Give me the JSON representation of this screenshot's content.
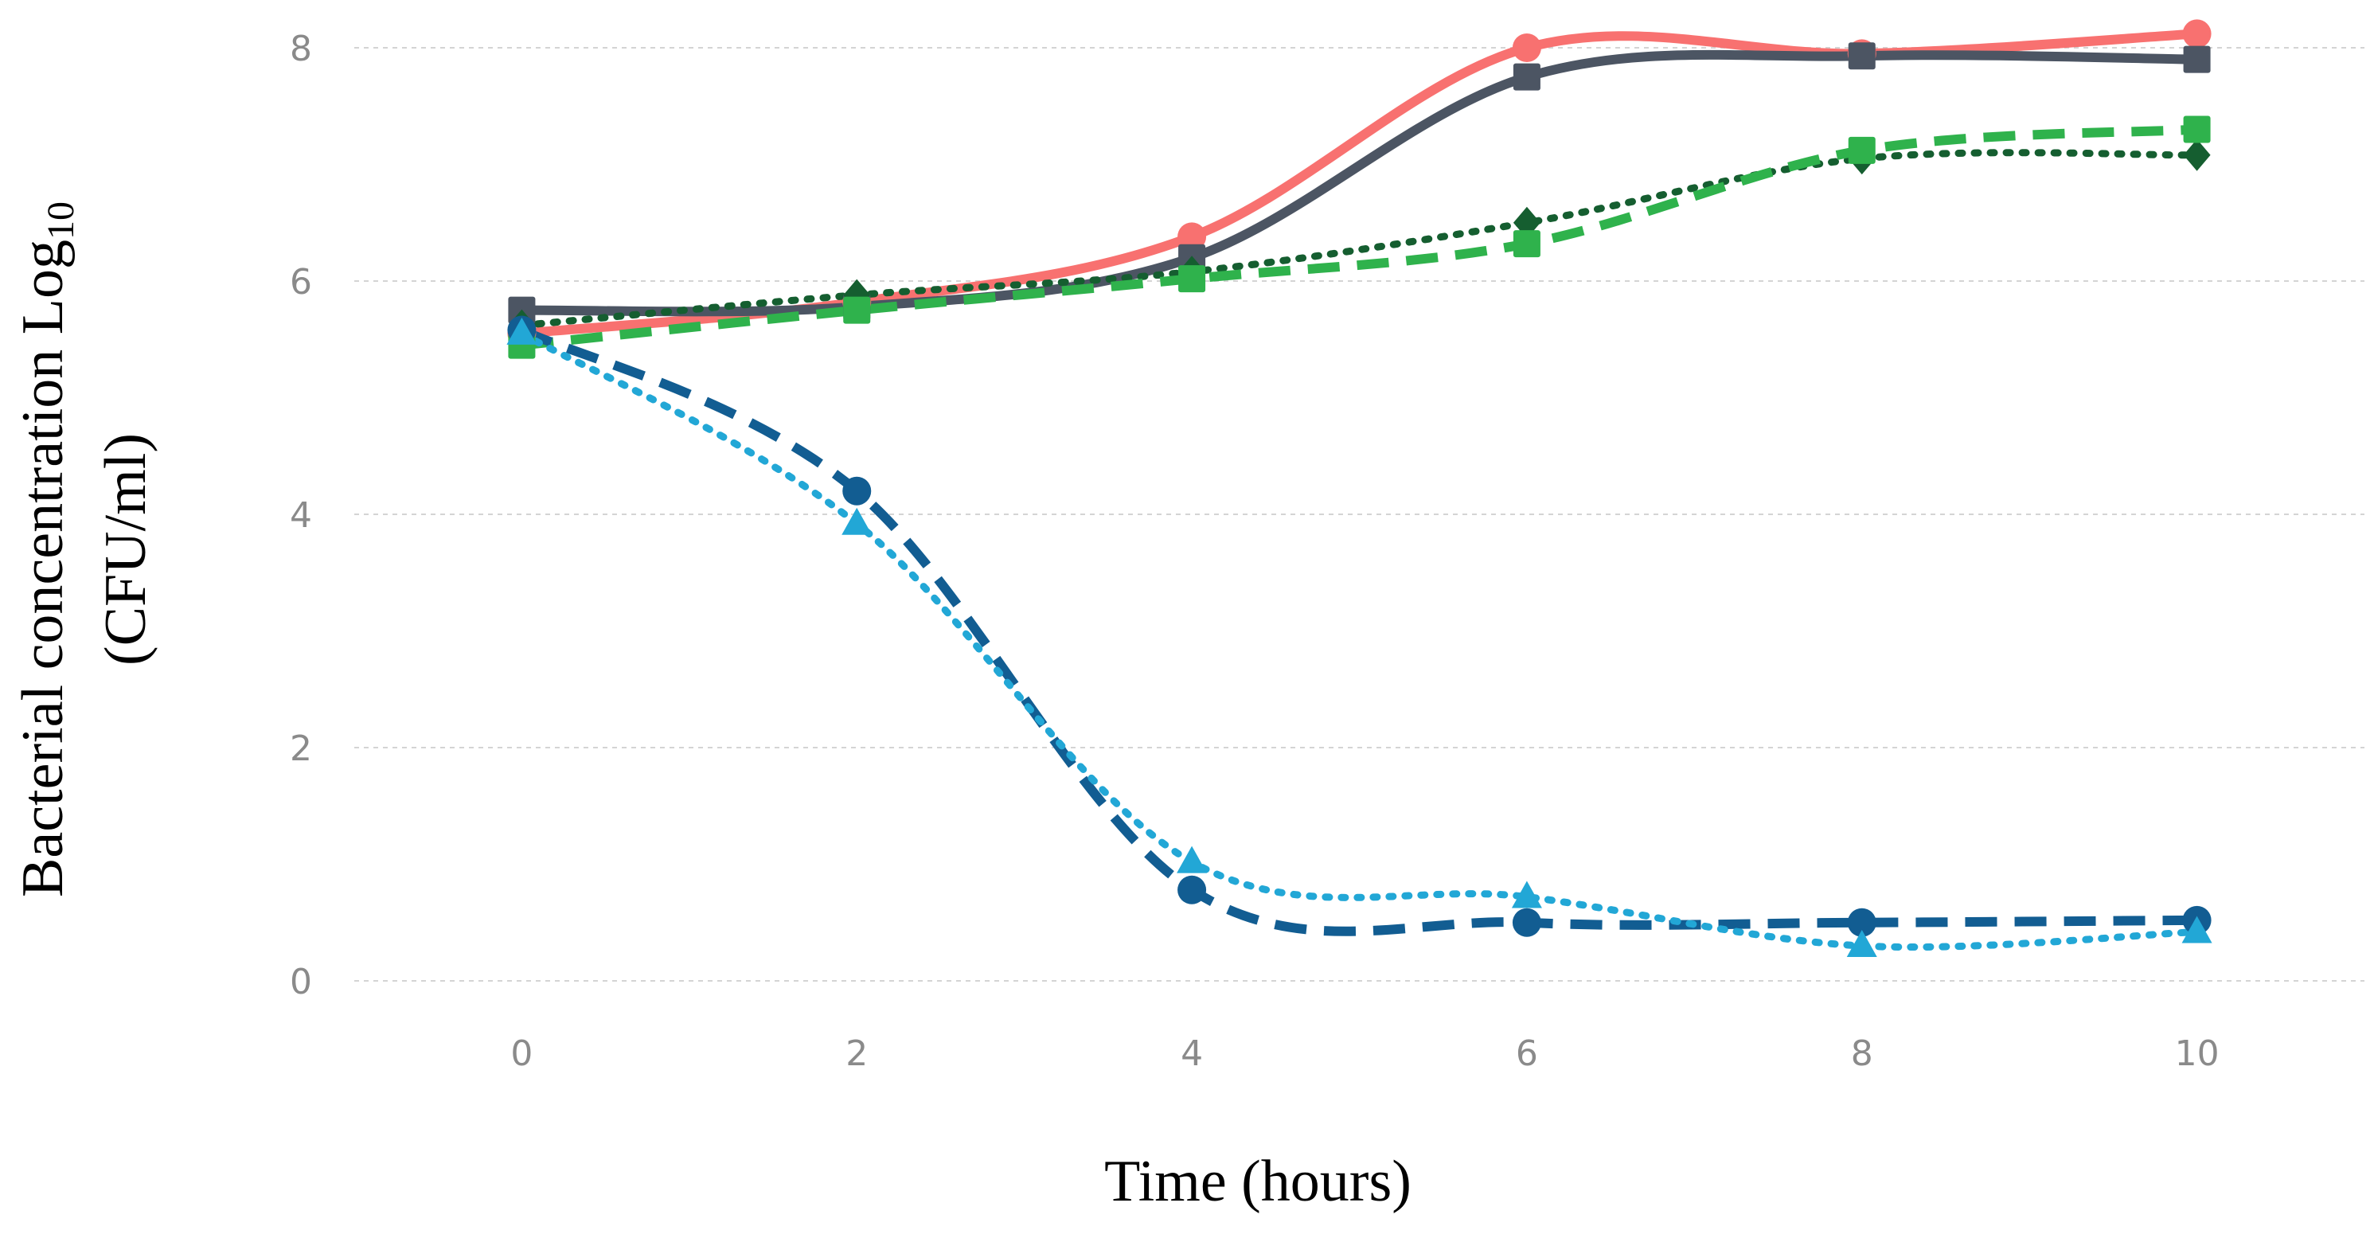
{
  "chart_data": {
    "type": "line",
    "title": "",
    "xlabel": "Time (hours)",
    "ylabel": {
      "line1_main": "Bacterial concentration Log",
      "line1_sub": "10",
      "line2": "(CFU/ml)"
    },
    "x": [
      0,
      2,
      4,
      6,
      8,
      10
    ],
    "xticks": [
      "0",
      "2",
      "4",
      "6",
      "8",
      "10"
    ],
    "yticks": [
      "0",
      "2",
      "4",
      "6",
      "8"
    ],
    "xlim": [
      -1,
      11
    ],
    "ylim": [
      0,
      8
    ],
    "grid": true,
    "legend": "none",
    "series": [
      {
        "values": [
          5.55,
          5.82,
          6.38,
          8.0,
          7.95,
          8.12
        ],
        "color": "#f87170",
        "style": "solid",
        "marker": "circle"
      },
      {
        "values": [
          5.75,
          5.78,
          6.2,
          7.75,
          7.93,
          7.9
        ],
        "color": "#4c5563",
        "style": "solid",
        "marker": "square"
      },
      {
        "values": [
          5.62,
          5.88,
          6.08,
          6.5,
          7.05,
          7.08
        ],
        "color": "#155e30",
        "style": "dotted",
        "marker": "diamond"
      },
      {
        "values": [
          5.45,
          5.75,
          6.02,
          6.32,
          7.12,
          7.3
        ],
        "color": "#2fb24c",
        "style": "dashed",
        "marker": "square"
      },
      {
        "values": [
          5.58,
          4.2,
          0.78,
          0.5,
          0.5,
          0.52
        ],
        "color": "#125d92",
        "style": "dashed",
        "marker": "circle"
      },
      {
        "values": [
          5.55,
          3.92,
          1.02,
          0.72,
          0.3,
          0.42
        ],
        "color": "#22a7d6",
        "style": "dotted",
        "marker": "triangle"
      }
    ]
  }
}
